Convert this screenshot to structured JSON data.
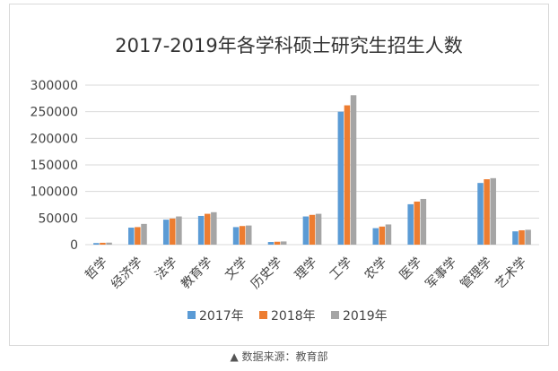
{
  "chart_data": {
    "type": "bar",
    "title": "2017-2019年各学科硕士研究生招生人数",
    "categories": [
      "哲学",
      "经济学",
      "法学",
      "教育学",
      "文学",
      "历史学",
      "理学",
      "工学",
      "农学",
      "医学",
      "军事学",
      "管理学",
      "艺术学"
    ],
    "series": [
      {
        "name": "2017年",
        "color": "#5b9bd5",
        "values": [
          3000,
          32000,
          47000,
          54000,
          33000,
          5000,
          53000,
          250000,
          31000,
          76000,
          0,
          116000,
          25000
        ]
      },
      {
        "name": "2018年",
        "color": "#ed7d31",
        "values": [
          3500,
          33000,
          49000,
          58000,
          35000,
          5500,
          56000,
          262000,
          34000,
          81000,
          0,
          123000,
          27000
        ]
      },
      {
        "name": "2019年",
        "color": "#a5a5a5",
        "values": [
          3800,
          39000,
          53000,
          61000,
          36000,
          6000,
          58000,
          281000,
          38000,
          86000,
          0,
          125000,
          28000
        ]
      }
    ],
    "ylim": [
      0,
      300000
    ],
    "yticks": [
      "0",
      "50000",
      "100000",
      "150000",
      "200000",
      "250000",
      "300000"
    ],
    "grid": true,
    "legend_position": "bottom"
  },
  "source_caption": "▲ 数据来源：教育部"
}
